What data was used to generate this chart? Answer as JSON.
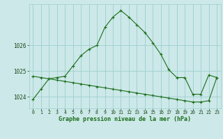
{
  "line1": [
    1023.9,
    1024.3,
    1024.7,
    1024.75,
    1024.8,
    1025.2,
    1025.6,
    1025.85,
    1026.0,
    1026.7,
    1027.1,
    1027.35,
    1027.1,
    1026.8,
    1026.5,
    1026.1,
    1025.65,
    1025.05,
    1024.75,
    1024.75,
    1024.1,
    1024.1,
    1024.85,
    1024.75
  ],
  "line2": [
    1024.8,
    1024.75,
    1024.7,
    1024.65,
    1024.6,
    1024.55,
    1024.5,
    1024.45,
    1024.4,
    1024.35,
    1024.3,
    1024.25,
    1024.2,
    1024.15,
    1024.1,
    1024.05,
    1024.0,
    1023.95,
    1023.9,
    1023.85,
    1023.8,
    1023.8,
    1023.85,
    1024.75
  ],
  "line_color": "#1a6e1a",
  "bg_color": "#cce8e8",
  "grid_color": "#9ecece",
  "xlabel": "Graphe pression niveau de la mer (hPa)",
  "yticks": [
    1024,
    1025,
    1026
  ],
  "xticks": [
    0,
    1,
    2,
    3,
    4,
    5,
    6,
    7,
    8,
    9,
    10,
    11,
    12,
    13,
    14,
    15,
    16,
    17,
    18,
    19,
    20,
    21,
    22,
    23
  ],
  "ylim": [
    1023.55,
    1027.6
  ],
  "xlim": [
    -0.5,
    23.5
  ]
}
